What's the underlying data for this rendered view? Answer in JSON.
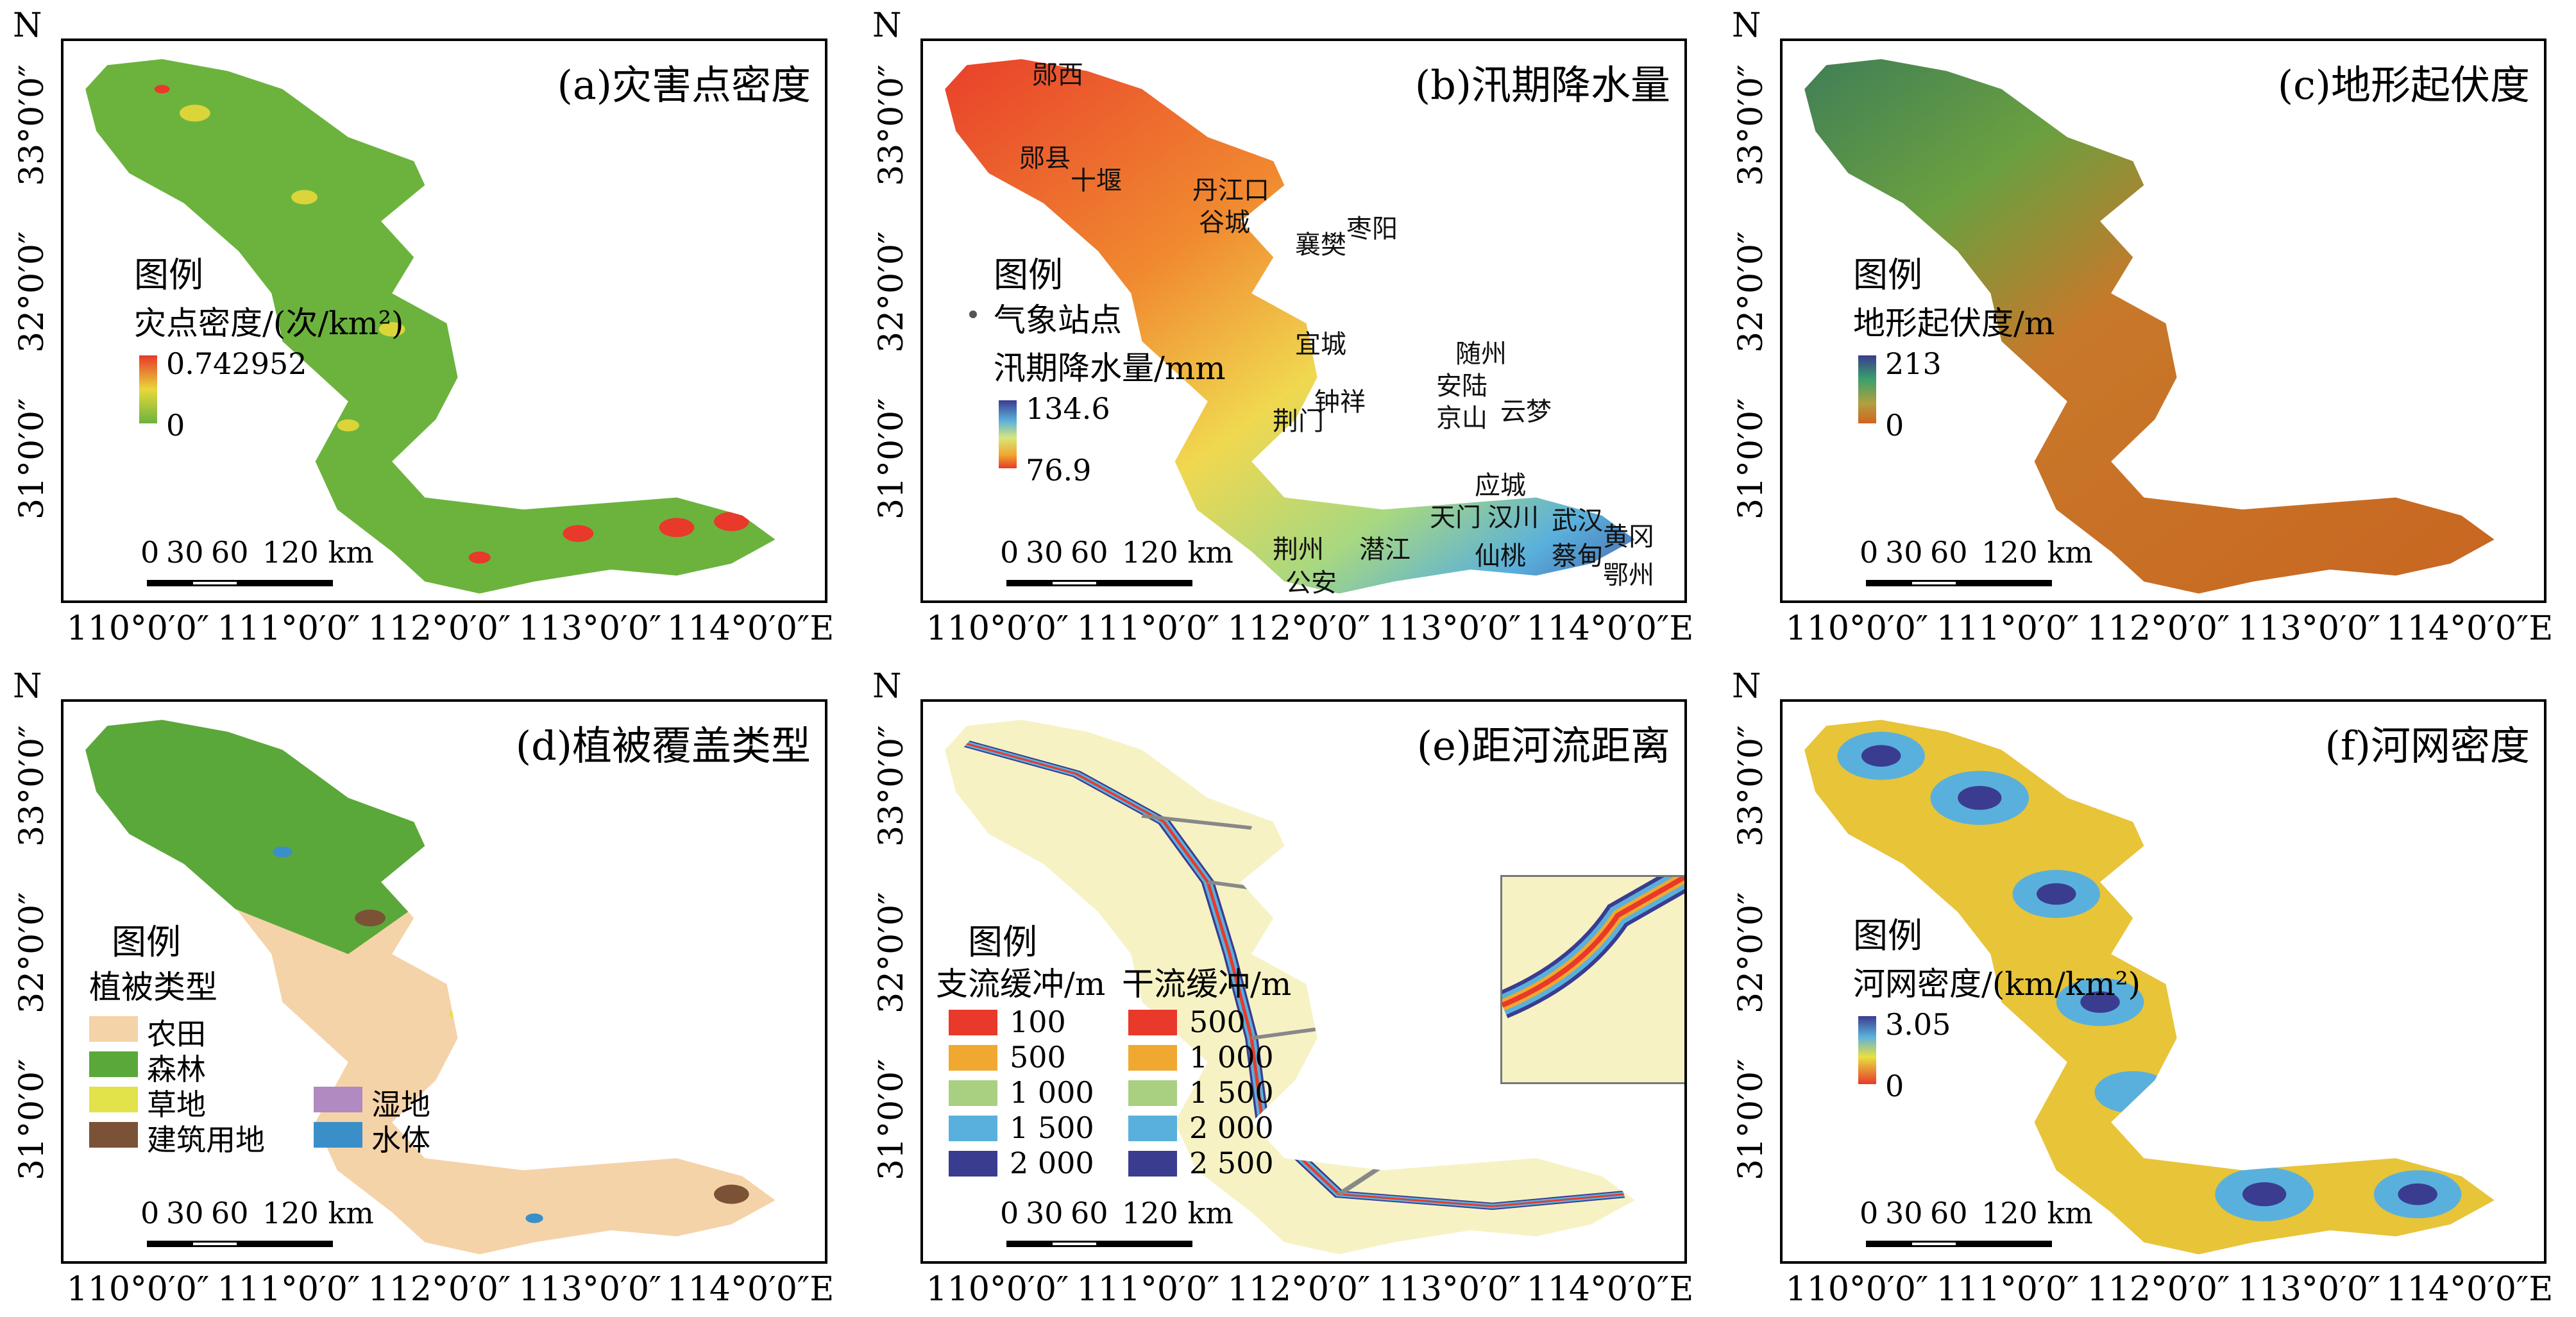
{
  "x_ticks": [
    "110°0′0″",
    "111°0′0″",
    "112°0′0″",
    "113°0′0″",
    "114°0′0″E"
  ],
  "y_ticks": [
    "33°0′0″",
    "32°0′0″",
    "31°0′0″"
  ],
  "north_label": "N",
  "scale": {
    "n0": "0",
    "n30": "30",
    "n60": "60",
    "n120": "120 km"
  },
  "legend_heading": "图例",
  "panels": {
    "a": {
      "title": "(a)灾害点密度",
      "ramp_label": "灾点密度/(次/km²)",
      "max": "0.742952",
      "min": "0",
      "colors": {
        "base": "#6cb33e",
        "high": "#e8392a",
        "mid": "#e8d83a"
      }
    },
    "b": {
      "title": "(b)汛期降水量",
      "station_label": "气象站点",
      "ramp_label": "汛期降水量/mm",
      "max": "134.6",
      "min": "76.9",
      "cities": [
        "郧西",
        "郧县",
        "十堰",
        "丹江口",
        "谷城",
        "襄樊",
        "枣阳",
        "宜城",
        "随州",
        "安陆",
        "钟祥",
        "京山",
        "云梦",
        "荆门",
        "应城",
        "天门",
        "汉川",
        "武汉",
        "黄冈",
        "蔡甸",
        "仙桃",
        "潜江",
        "荆州",
        "公安",
        "鄂州"
      ]
    },
    "c": {
      "title": "(c)地形起伏度",
      "ramp_label": "地形起伏度/m",
      "max": "213",
      "min": "0"
    },
    "d": {
      "title": "(d)植被覆盖类型",
      "legend_sub": "植被类型",
      "classes": [
        {
          "label": "农田",
          "color": "#f5d3a8"
        },
        {
          "label": "森林",
          "color": "#5aa83a"
        },
        {
          "label": "草地",
          "color": "#e2e24a"
        },
        {
          "label": "建筑用地",
          "color": "#7b5235"
        },
        {
          "label": "湿地",
          "color": "#b08ac0"
        },
        {
          "label": "水体",
          "color": "#3b8fc8"
        }
      ]
    },
    "e": {
      "title": "(e)距河流距离",
      "trib_label": "支流缓冲/m",
      "main_label": "干流缓冲/m",
      "trib": [
        "100",
        "500",
        "1 000",
        "1 500",
        "2 000"
      ],
      "main": [
        "500",
        "1 000",
        "1 500",
        "2 000",
        "2 500"
      ],
      "buffer_colors": [
        "#e8392a",
        "#f0a830",
        "#a8d080",
        "#5ab0dc",
        "#3a3c90"
      ]
    },
    "f": {
      "title": "(f)河网密度",
      "ramp_label": "河网密度/(km/km²)",
      "max": "3.05",
      "min": "0"
    }
  }
}
